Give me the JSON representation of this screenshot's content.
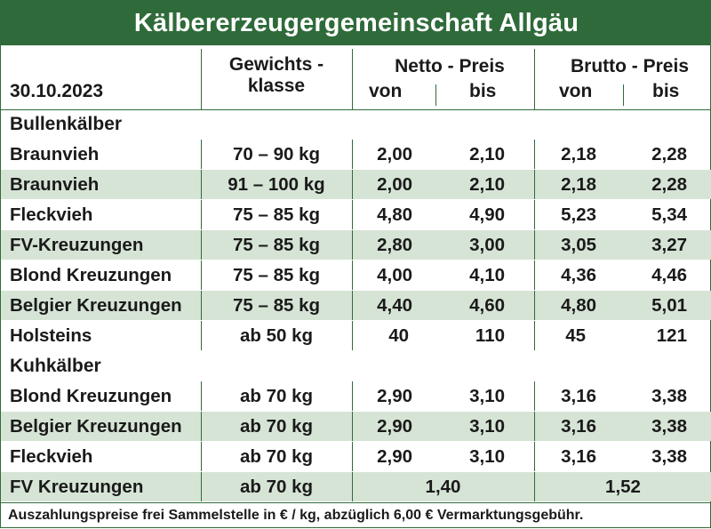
{
  "title": "Kälbererzeugergemeinschaft Allgäu",
  "header": {
    "date": "30.10.2023",
    "gewichtsklasse_line1": "Gewichts -",
    "gewichtsklasse_line2": "klasse",
    "netto_label": "Netto - Preis",
    "brutto_label": "Brutto - Preis",
    "von": "von",
    "bis": "bis"
  },
  "sections": [
    {
      "name": "Bullenkälber",
      "rows": [
        {
          "name": "Braunvieh",
          "klasse": "70 – 90 kg",
          "netto_von": "2,00",
          "netto_bis": "2,10",
          "brutto_von": "2,18",
          "brutto_bis": "2,28"
        },
        {
          "name": "Braunvieh",
          "klasse": "91 – 100 kg",
          "netto_von": "2,00",
          "netto_bis": "2,10",
          "brutto_von": "2,18",
          "brutto_bis": "2,28"
        },
        {
          "name": "Fleckvieh",
          "klasse": "75 – 85 kg",
          "netto_von": "4,80",
          "netto_bis": "4,90",
          "brutto_von": "5,23",
          "brutto_bis": "5,34"
        },
        {
          "name": "FV-Kreuzungen",
          "klasse": "75 – 85 kg",
          "netto_von": "2,80",
          "netto_bis": "3,00",
          "brutto_von": "3,05",
          "brutto_bis": "3,27"
        },
        {
          "name": "Blond Kreuzungen",
          "klasse": "75 – 85 kg",
          "netto_von": "4,00",
          "netto_bis": "4,10",
          "brutto_von": "4,36",
          "brutto_bis": "4,46"
        },
        {
          "name": "Belgier Kreuzungen",
          "klasse": "75 – 85 kg",
          "netto_von": "4,40",
          "netto_bis": "4,60",
          "brutto_von": "4,80",
          "brutto_bis": "5,01"
        },
        {
          "name": "Holsteins",
          "klasse": "ab 50 kg",
          "netto_von": "40",
          "netto_bis": "110",
          "brutto_von": "45",
          "brutto_bis": "121"
        }
      ]
    },
    {
      "name": "Kuhkälber",
      "rows": [
        {
          "name": "Blond Kreuzungen",
          "klasse": "ab 70 kg",
          "netto_von": "2,90",
          "netto_bis": "3,10",
          "brutto_von": "3,16",
          "brutto_bis": "3,38"
        },
        {
          "name": "Belgier Kreuzungen",
          "klasse": "ab 70 kg",
          "netto_von": "2,90",
          "netto_bis": "3,10",
          "brutto_von": "3,16",
          "brutto_bis": "3,38"
        },
        {
          "name": "Fleckvieh",
          "klasse": "ab 70 kg",
          "netto_von": "2,90",
          "netto_bis": "3,10",
          "brutto_von": "3,16",
          "brutto_bis": "3,38"
        },
        {
          "name": "FV Kreuzungen",
          "klasse": "ab 70 kg",
          "netto_merged": "1,40",
          "brutto_merged": "1,52"
        }
      ]
    }
  ],
  "footer": "Auszahlungspreise frei Sammelstelle in € / kg, abzüglich 6,00 € Vermarktungsgebühr.",
  "colors": {
    "brand_green": "#2f6b3a",
    "stripe": "#d6e4d6"
  }
}
